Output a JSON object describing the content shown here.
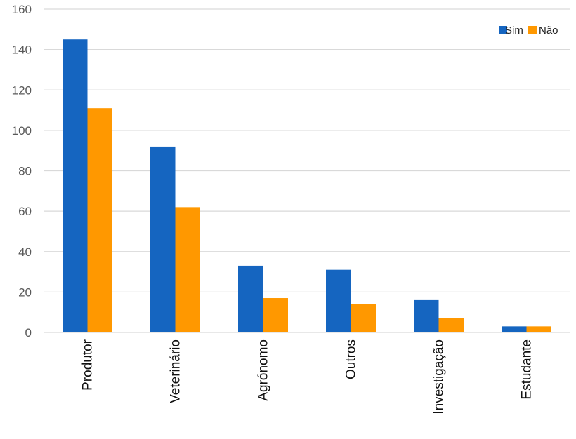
{
  "chart_data": {
    "type": "bar",
    "title": "",
    "xlabel": "",
    "ylabel": "",
    "categories": [
      "Produtor",
      "Veterinário",
      "Agrónomo",
      "Outros",
      "Investigação",
      "Estudante"
    ],
    "series": [
      {
        "name": "Sim",
        "values": [
          145,
          92,
          33,
          31,
          16,
          3
        ],
        "color": "#1565C0"
      },
      {
        "name": "Não",
        "values": [
          111,
          62,
          17,
          14,
          7,
          3
        ],
        "color": "#FF9800"
      }
    ],
    "ylim": [
      0,
      160
    ],
    "yticks": [
      0,
      20,
      40,
      60,
      80,
      100,
      120,
      140,
      160
    ],
    "grid": true,
    "legend_placement": "top-right"
  }
}
